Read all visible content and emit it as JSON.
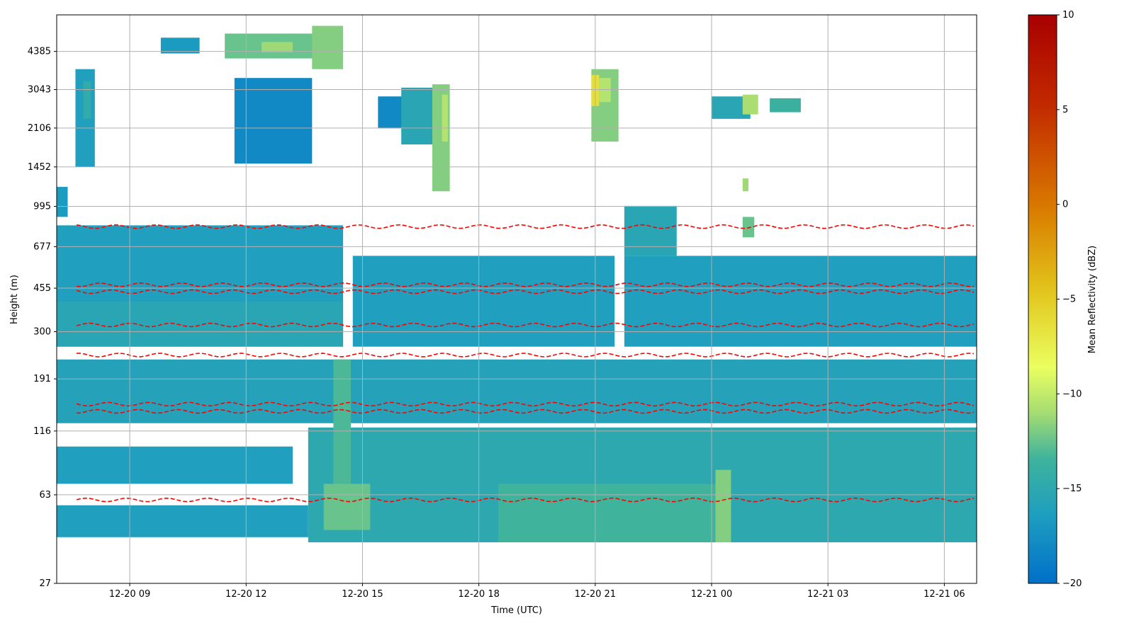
{
  "chart_data": {
    "type": "heatmap",
    "title": "",
    "xlabel": "Time (UTC)",
    "ylabel": "Height (m)",
    "colorbar_label": "Mean Reflectivity (dBZ)",
    "colormap": [
      "#0070c8",
      "#1e9ec0",
      "#3fb39c",
      "#a6dc73",
      "#eaff60",
      "#e2c21a",
      "#d97a00",
      "#c22a00",
      "#a80000"
    ],
    "clim": [
      -20,
      10
    ],
    "colorbar_ticks": [
      10,
      5,
      0,
      -5,
      -10,
      -15,
      -20
    ],
    "colorbar_tick_labels": [
      "10",
      "5",
      "0",
      "−5",
      "−10",
      "−15",
      "−20"
    ],
    "x_ticks": [
      "12-20 09",
      "12-20 12",
      "12-20 15",
      "12-20 18",
      "12-20 21",
      "12-21 00",
      "12-21 03",
      "12-21 06"
    ],
    "x_range": [
      "12-20 07:07",
      "12-21 06:50"
    ],
    "y_ticks": [
      "4385",
      "3043",
      "2106",
      "1452",
      "995",
      "677",
      "455",
      "300",
      "191",
      "116",
      "63",
      "27"
    ],
    "y_scale": "log",
    "grid": true,
    "contour_line": "red dashed",
    "echo_regions": [
      {
        "t0": 7.0,
        "t1": 14.5,
        "h0": 260,
        "h1": 830,
        "dbz": -16.0
      },
      {
        "t0": 14.75,
        "t1": 21.5,
        "h0": 260,
        "h1": 620,
        "dbz": -16.0
      },
      {
        "t0": 21.75,
        "t1": 30.85,
        "h0": 260,
        "h1": 620,
        "dbz": -16.0
      },
      {
        "t0": 21.75,
        "t1": 23.1,
        "h0": 620,
        "h1": 1000,
        "dbz": -15.0
      },
      {
        "t0": 7.0,
        "t1": 30.85,
        "h0": 125,
        "h1": 230,
        "dbz": -15.5
      },
      {
        "t0": 7.0,
        "t1": 14.5,
        "h0": 260,
        "h1": 400,
        "dbz": -15.0
      },
      {
        "t0": 13.6,
        "t1": 30.85,
        "h0": 40,
        "h1": 120,
        "dbz": -14.5
      },
      {
        "t0": 7.0,
        "t1": 13.2,
        "h0": 70,
        "h1": 100,
        "dbz": -16.0
      },
      {
        "t0": 7.0,
        "t1": 13.6,
        "h0": 42,
        "h1": 57,
        "dbz": -16.0
      },
      {
        "t0": 18.5,
        "t1": 24.5,
        "h0": 40,
        "h1": 70,
        "dbz": -12.5
      },
      {
        "t0": 24.1,
        "t1": 24.5,
        "h0": 40,
        "h1": 80,
        "dbz": -10.0
      },
      {
        "t0": 14.25,
        "t1": 14.7,
        "h0": 45,
        "h1": 230,
        "dbz": -12.0
      },
      {
        "t0": 14.0,
        "t1": 15.2,
        "h0": 45,
        "h1": 70,
        "dbz": -11.0
      },
      {
        "t0": 7.0,
        "t1": 7.4,
        "h0": 900,
        "h1": 1200,
        "dbz": -16.5
      },
      {
        "t0": 7.6,
        "t1": 8.1,
        "h0": 1450,
        "h1": 3700,
        "dbz": -16.0
      },
      {
        "t0": 7.8,
        "t1": 8.0,
        "h0": 2300,
        "h1": 3300,
        "dbz": -14.0
      },
      {
        "t0": 9.8,
        "t1": 10.8,
        "h0": 4300,
        "h1": 5000,
        "dbz": -16.5
      },
      {
        "t0": 11.45,
        "t1": 14.5,
        "h0": 4100,
        "h1": 5200,
        "dbz": -11.0
      },
      {
        "t0": 12.4,
        "t1": 13.2,
        "h0": 4350,
        "h1": 4800,
        "dbz": -9.0
      },
      {
        "t0": 13.7,
        "t1": 14.5,
        "h0": 3700,
        "h1": 5600,
        "dbz": -10.0
      },
      {
        "t0": 11.7,
        "t1": 13.7,
        "h0": 1500,
        "h1": 3400,
        "dbz": -18.0
      },
      {
        "t0": 15.4,
        "t1": 16.1,
        "h0": 2100,
        "h1": 2850,
        "dbz": -18.0
      },
      {
        "t0": 16.0,
        "t1": 17.2,
        "h0": 1800,
        "h1": 3100,
        "dbz": -15.0
      },
      {
        "t0": 16.8,
        "t1": 17.25,
        "h0": 1150,
        "h1": 3200,
        "dbz": -10.0
      },
      {
        "t0": 17.05,
        "t1": 17.2,
        "h0": 1850,
        "h1": 2900,
        "dbz": -8.0
      },
      {
        "t0": 20.9,
        "t1": 21.6,
        "h0": 1850,
        "h1": 3700,
        "dbz": -10.0
      },
      {
        "t0": 20.9,
        "t1": 21.1,
        "h0": 2600,
        "h1": 3500,
        "dbz": -3.0
      },
      {
        "t0": 21.1,
        "t1": 21.4,
        "h0": 2700,
        "h1": 3400,
        "dbz": -8.0
      },
      {
        "t0": 24.0,
        "t1": 25.0,
        "h0": 2300,
        "h1": 2850,
        "dbz": -15.0
      },
      {
        "t0": 24.8,
        "t1": 25.2,
        "h0": 2400,
        "h1": 2900,
        "dbz": -8.5
      },
      {
        "t0": 25.5,
        "t1": 26.3,
        "h0": 2450,
        "h1": 2800,
        "dbz": -13.0
      },
      {
        "t0": 24.8,
        "t1": 24.95,
        "h0": 1150,
        "h1": 1300,
        "dbz": -9.0
      },
      {
        "t0": 24.8,
        "t1": 25.1,
        "h0": 740,
        "h1": 900,
        "dbz": -11.0
      }
    ],
    "reflectivity_contours_h": [
      440,
      470,
      320,
      240,
      150,
      140,
      60,
      820
    ],
    "units": {
      "height": "m",
      "reflectivity": "dBZ"
    }
  }
}
